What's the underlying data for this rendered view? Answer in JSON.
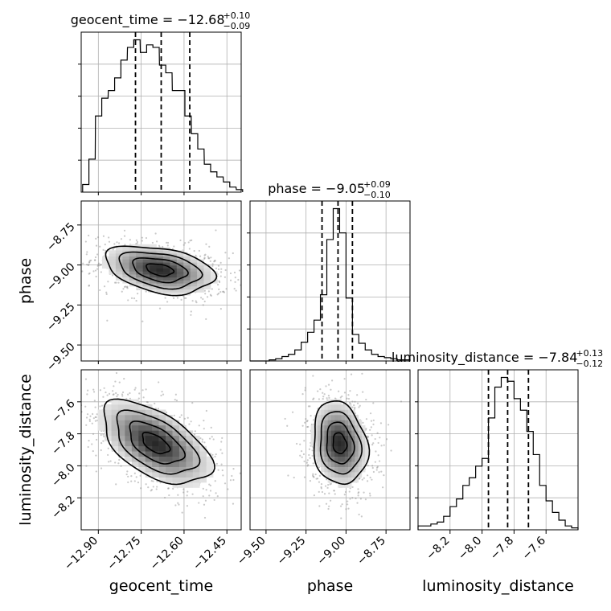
{
  "chart_data": {
    "type": "corner",
    "parameters": [
      "geocent_time",
      "phase",
      "luminosity_distance"
    ],
    "titles": [
      {
        "param": "geocent_time",
        "prefix": "geocent_time = ",
        "median": "−12.68",
        "upper": "+0.10",
        "lower": "−0.09"
      },
      {
        "param": "phase",
        "prefix": "phase = ",
        "median": "−9.05",
        "upper": "+0.09",
        "lower": "−0.10"
      },
      {
        "param": "luminosity_distance",
        "prefix": "luminosity_distance = ",
        "median": "−7.84",
        "upper": "+0.13",
        "lower": "−0.12"
      }
    ],
    "axes": {
      "geocent_time": {
        "range": [
          -12.96,
          -12.4
        ],
        "ticks": [
          -12.9,
          -12.75,
          -12.6,
          -12.45
        ],
        "tick_labels": [
          "−12.90",
          "−12.75",
          "−12.60",
          "−12.45"
        ]
      },
      "phase": {
        "range": [
          -9.6,
          -8.6
        ],
        "ticks": [
          -9.5,
          -9.25,
          -9.0,
          -8.75
        ],
        "tick_labels": [
          "−9.50",
          "−9.25",
          "−9.00",
          "−8.75"
        ]
      },
      "luminosity_distance": {
        "range": [
          -8.4,
          -7.4
        ],
        "ticks": [
          -8.2,
          -8.0,
          -7.8,
          -7.6
        ],
        "tick_labels": [
          "−8.2",
          "−8.0",
          "−7.8",
          "−7.6"
        ]
      }
    },
    "histograms": {
      "geocent_time": {
        "bins": [
          -12.944,
          -12.922,
          -12.899,
          -12.877,
          -12.854,
          -12.832,
          -12.81,
          -12.787,
          -12.765,
          -12.742,
          -12.72,
          -12.698,
          -12.675,
          -12.653,
          -12.63,
          -12.608,
          -12.586,
          -12.563,
          -12.541,
          -12.518,
          -12.496,
          -12.474,
          -12.451,
          -12.429,
          -12.406
        ],
        "counts": [
          3,
          13,
          30,
          37,
          40,
          45,
          52,
          57,
          60,
          55,
          58,
          57,
          50,
          47,
          40,
          40,
          30,
          23,
          17,
          11,
          8,
          6,
          4,
          2,
          1
        ],
        "quantiles": [
          -12.77,
          -12.68,
          -12.58
        ]
      },
      "phase": {
        "bins": [
          -9.58,
          -9.54,
          -9.5,
          -9.46,
          -9.42,
          -9.38,
          -9.34,
          -9.3,
          -9.26,
          -9.22,
          -9.18,
          -9.14,
          -9.1,
          -9.06,
          -9.02,
          -8.98,
          -8.94,
          -8.9,
          -8.86,
          -8.82,
          -8.78,
          -8.74,
          -8.7,
          -8.66,
          -8.62
        ],
        "counts": [
          0,
          0,
          0,
          1,
          2,
          4,
          6,
          10,
          17,
          26,
          37,
          60,
          110,
          138,
          116,
          57,
          24,
          16,
          10,
          6,
          4,
          3,
          2,
          1,
          1
        ],
        "quantiles": [
          -9.15,
          -9.05,
          -8.96
        ]
      },
      "luminosity_distance": {
        "bins": [
          -8.38,
          -8.34,
          -8.3,
          -8.26,
          -8.22,
          -8.18,
          -8.14,
          -8.1,
          -8.06,
          -8.02,
          -7.98,
          -7.94,
          -7.9,
          -7.86,
          -7.82,
          -7.78,
          -7.74,
          -7.7,
          -7.66,
          -7.62,
          -7.58,
          -7.54,
          -7.5,
          -7.46,
          -7.42
        ],
        "counts": [
          2,
          2,
          3,
          4,
          7,
          12,
          16,
          23,
          27,
          33,
          37,
          58,
          74,
          79,
          77,
          68,
          62,
          51,
          39,
          23,
          15,
          9,
          5,
          2,
          1
        ],
        "quantiles": [
          -7.96,
          -7.84,
          -7.71
        ]
      }
    },
    "contour_panels": [
      {
        "x": "geocent_time",
        "y": "phase",
        "center": [
          -12.685,
          -9.03
        ],
        "spread": [
          0.095,
          0.075
        ],
        "correlation": -0.35
      },
      {
        "x": "geocent_time",
        "y": "luminosity_distance",
        "center": [
          -12.7,
          -7.86
        ],
        "spread": [
          0.095,
          0.13
        ],
        "correlation": -0.55
      },
      {
        "x": "phase",
        "y": "luminosity_distance",
        "center": [
          -9.04,
          -7.86
        ],
        "spread": [
          0.085,
          0.13
        ],
        "correlation": -0.15
      }
    ],
    "grid": true,
    "colors": {
      "line": "#000000",
      "grid": "#b0b0b0",
      "samples": "#888888"
    }
  }
}
